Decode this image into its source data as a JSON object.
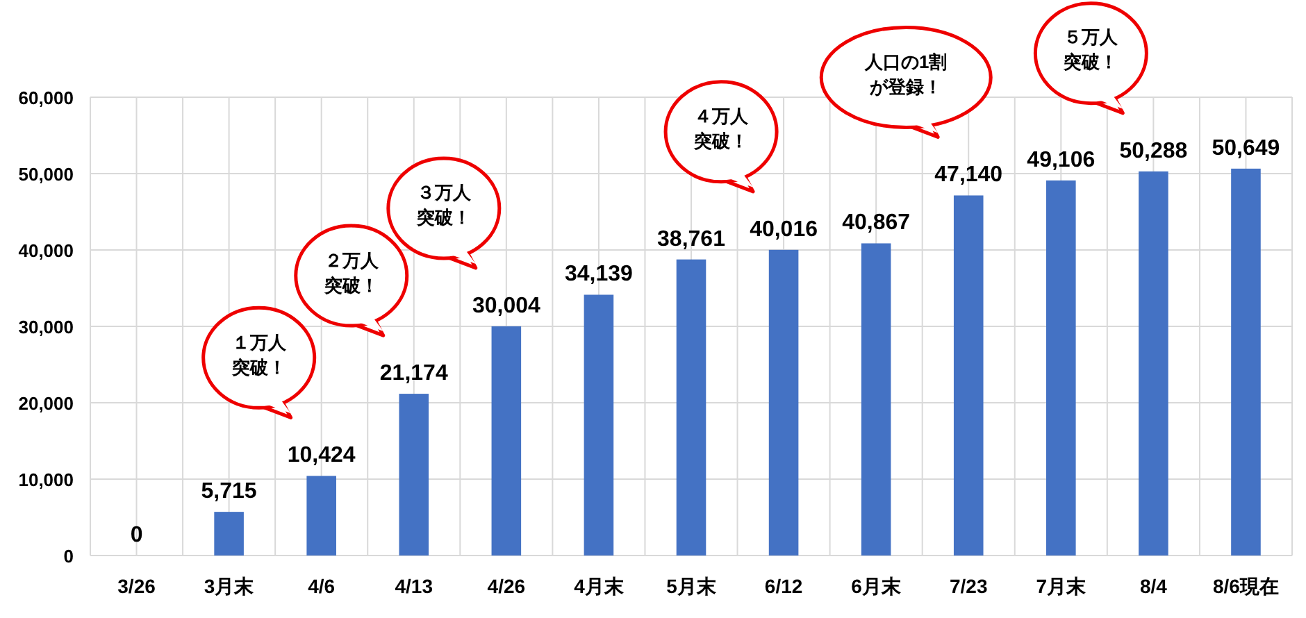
{
  "chart_data": {
    "type": "bar",
    "categories": [
      "3/26",
      "3月末",
      "4/6",
      "4/13",
      "4/26",
      "4月末",
      "5月末",
      "6/12",
      "6月末",
      "7/23",
      "7月末",
      "8/4",
      "8/6現在"
    ],
    "values": [
      0,
      5715,
      10424,
      21174,
      30004,
      34139,
      38761,
      40016,
      40867,
      47140,
      49106,
      50288,
      50649
    ],
    "color": "#4472c4",
    "ylim": [
      0,
      60000
    ],
    "yticks": [
      {
        "value": 0,
        "label": "0"
      },
      {
        "value": 10000,
        "label": "10,000"
      },
      {
        "value": 20000,
        "label": "20,000"
      },
      {
        "value": 30000,
        "label": "30,000"
      },
      {
        "value": 40000,
        "label": "40,000"
      },
      {
        "value": 50000,
        "label": "50,000"
      },
      {
        "value": 60000,
        "label": "60,000"
      }
    ],
    "grid": true,
    "value_labels": [
      "0",
      "5,715",
      "10,424",
      "21,174",
      "30,004",
      "34,139",
      "38,761",
      "40,016",
      "40,867",
      "47,140",
      "49,106",
      "50,288",
      "50,649"
    ],
    "annotations": [
      "１万人突破！",
      "２万人突破！",
      "３万人突破！",
      "４万人突破！",
      "人口の1割が登録！",
      "５万人突破！"
    ]
  }
}
